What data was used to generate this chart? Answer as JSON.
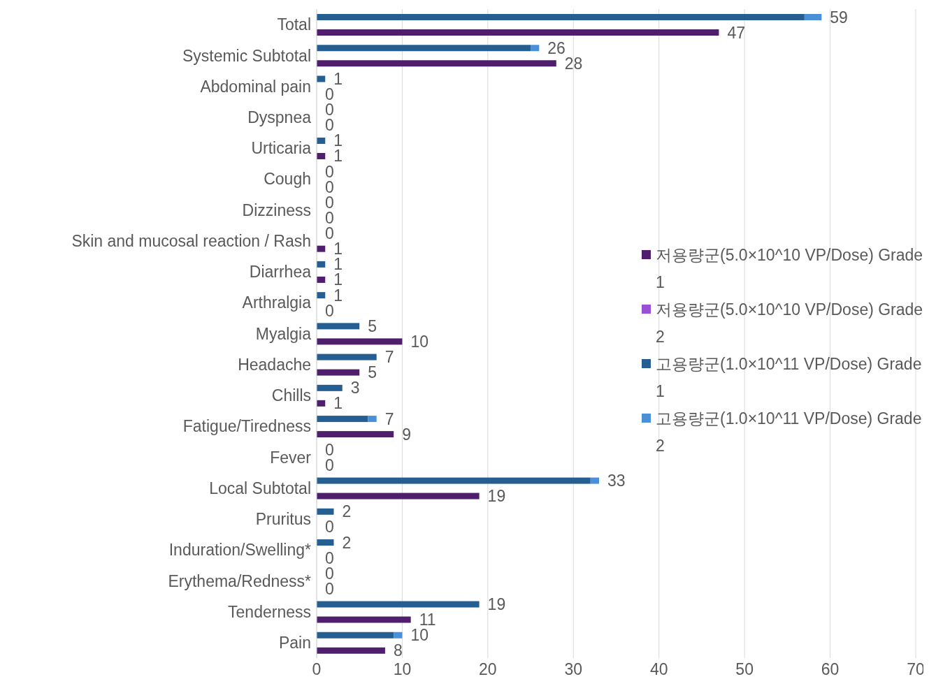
{
  "chart_data": {
    "type": "bar",
    "orientation": "horizontal",
    "categories": [
      "Total",
      "Systemic Subtotal",
      "Abdominal pain",
      "Dyspnea",
      "Urticaria",
      "Cough",
      "Dizziness",
      "Skin and mucosal reaction / Rash",
      "Diarrhea",
      "Arthralgia",
      "Myalgia",
      "Headache",
      "Chills",
      "Fatigue/Tiredness",
      "Fever",
      "Local Subtotal",
      "Pruritus",
      "Induration/Swelling*",
      "Erythema/Redness*",
      "Tenderness",
      "Pain"
    ],
    "series": [
      {
        "name": "저용량군(5.0×10^10 VP/Dose) Grade 1",
        "color": "#4f1f6e",
        "values": [
          47,
          28,
          0,
          0,
          1,
          0,
          0,
          1,
          1,
          0,
          10,
          5,
          1,
          9,
          0,
          19,
          0,
          0,
          0,
          11,
          8
        ],
        "value_labels": [
          "47",
          "28",
          "0",
          "0",
          "1",
          "0",
          "0",
          "1",
          "1",
          "0",
          "10",
          "5",
          "1",
          "9",
          "0",
          "19",
          "0",
          "0",
          "0",
          "11",
          "8"
        ]
      },
      {
        "name": "저용량군(5.0×10^10 VP/Dose) Grade 2",
        "color": "#9b4fd6",
        "base": [
          null,
          null,
          null,
          null,
          null,
          null,
          null,
          null,
          null,
          null,
          null,
          null,
          null,
          null,
          null,
          null,
          null,
          null,
          null,
          null,
          null
        ],
        "values": [
          0,
          0,
          0,
          0,
          0,
          0,
          0,
          0,
          0,
          0,
          0,
          0,
          0,
          0,
          0,
          0,
          0,
          0,
          0,
          0,
          0
        ]
      },
      {
        "name": "고용량군(1.0×10^11 VP/Dose) Grade 1",
        "color": "#255e91",
        "values": [
          57,
          25,
          1,
          0,
          1,
          0,
          0,
          0,
          1,
          1,
          5,
          7,
          3,
          6,
          0,
          32,
          2,
          2,
          0,
          19,
          9
        ],
        "value_labels": [
          null,
          null,
          "1",
          "0",
          "1",
          "0",
          "0",
          "0",
          "1",
          "1",
          "5",
          "7",
          "3",
          null,
          "0",
          null,
          "2",
          "2",
          "0",
          "19",
          null
        ]
      },
      {
        "name": "고용량군(1.0×10^11 VP/Dose) Grade 2",
        "color": "#4a90d9",
        "base": [
          57,
          25,
          null,
          null,
          null,
          null,
          null,
          null,
          null,
          null,
          null,
          null,
          null,
          6,
          null,
          32,
          null,
          null,
          null,
          null,
          9
        ],
        "values": [
          2,
          1,
          0,
          0,
          0,
          0,
          0,
          0,
          0,
          0,
          0,
          0,
          0,
          1,
          0,
          1,
          0,
          0,
          0,
          0,
          1
        ],
        "value_labels": [
          "59",
          "26",
          null,
          null,
          null,
          null,
          null,
          null,
          null,
          null,
          null,
          null,
          null,
          "7",
          null,
          "33",
          null,
          null,
          null,
          null,
          "10"
        ]
      }
    ],
    "xlim": [
      0,
      70
    ],
    "xticks": [
      0,
      10,
      20,
      30,
      40,
      50,
      60,
      70
    ],
    "grid": "x",
    "legend": "right"
  }
}
